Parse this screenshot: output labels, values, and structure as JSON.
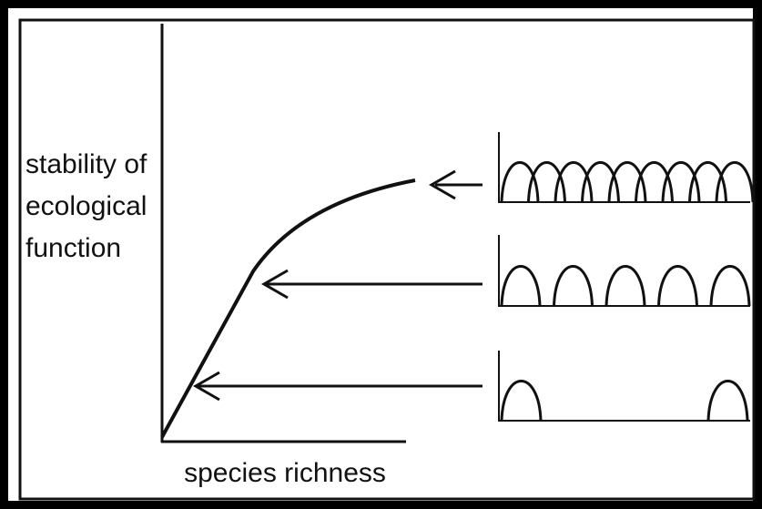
{
  "y_axis_label": [
    "stability of",
    "ecological",
    "function"
  ],
  "x_axis_label": "species richness"
}
